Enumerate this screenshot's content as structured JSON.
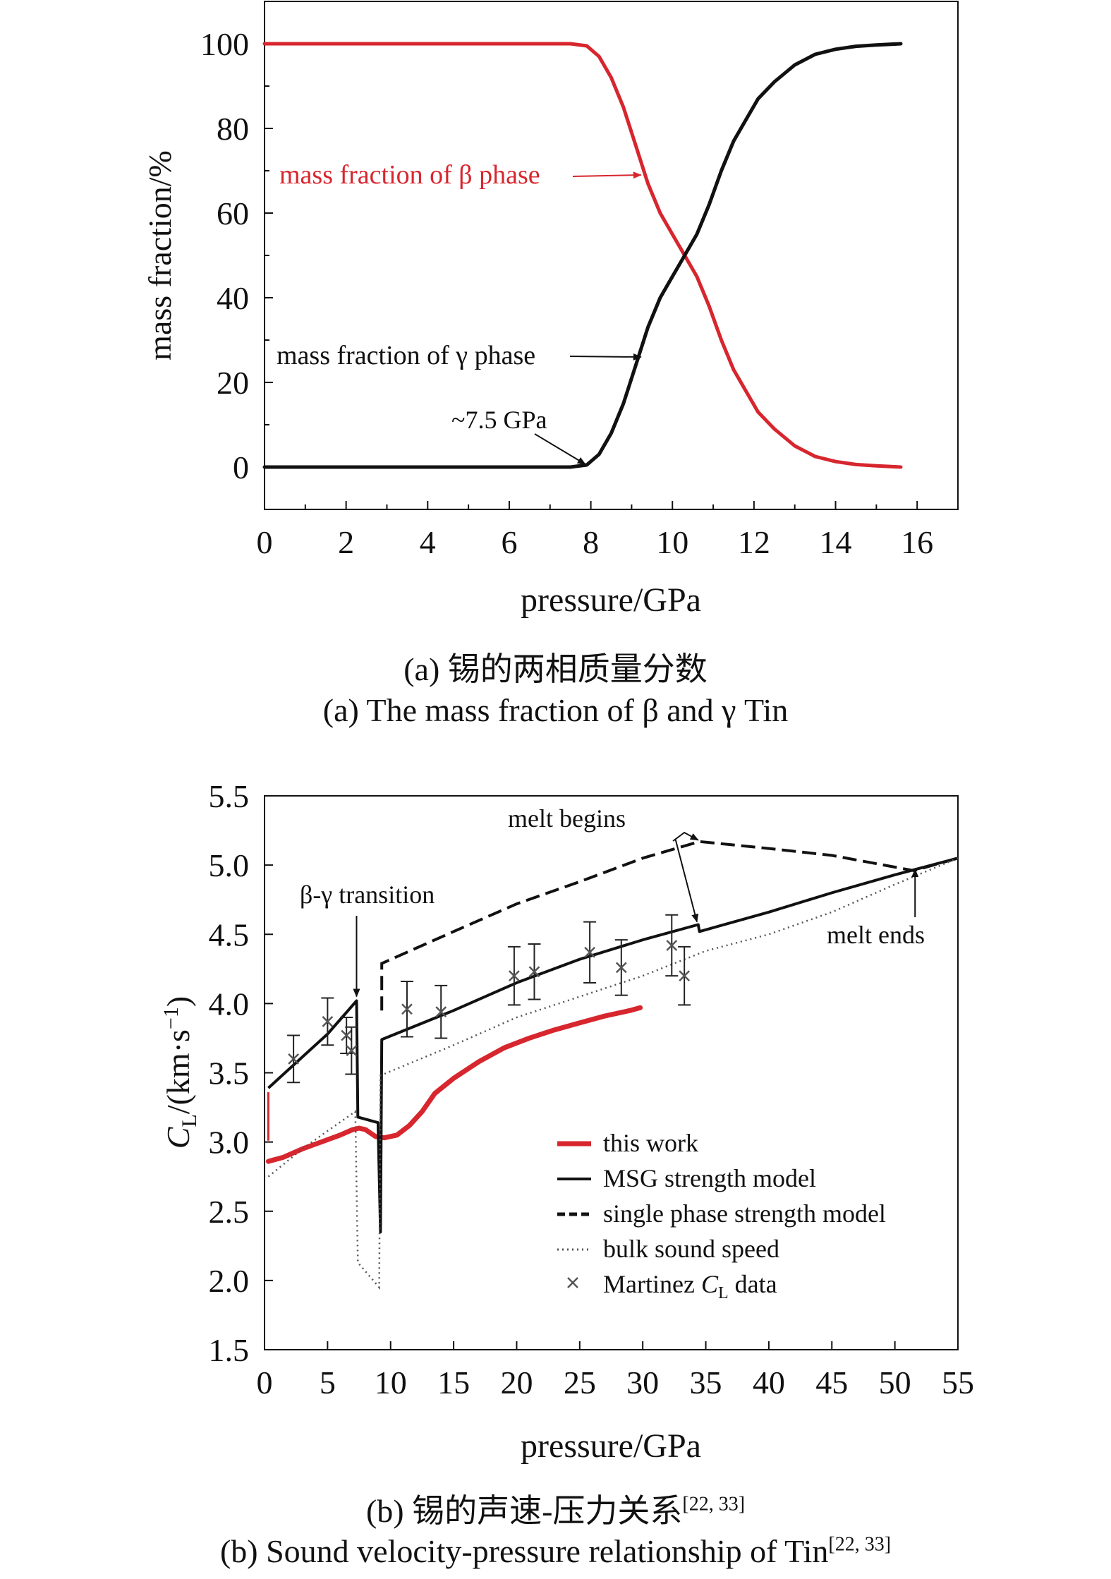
{
  "colors": {
    "red": "#d7262e",
    "black": "#111111",
    "gray": "#555555",
    "marker": "#555555"
  },
  "chart_data": [
    {
      "id": "a",
      "type": "line",
      "xlabel": "pressure/GPa",
      "ylabel": "mass fraction/%",
      "xlim": [
        0,
        17
      ],
      "ylim": [
        -10,
        110
      ],
      "xticks": [
        0,
        2,
        4,
        6,
        8,
        10,
        12,
        14,
        16
      ],
      "yticks": [
        0,
        20,
        40,
        60,
        80,
        100
      ],
      "series": [
        {
          "name": "mass fraction of β phase",
          "color": "red",
          "x": [
            0,
            7.5,
            7.9,
            8.2,
            8.5,
            8.8,
            9.1,
            9.4,
            9.7,
            10.0,
            10.3,
            10.6,
            10.9,
            11.2,
            11.5,
            11.8,
            12.1,
            12.5,
            13.0,
            13.5,
            14.0,
            14.5,
            15.0,
            15.6
          ],
          "y": [
            100,
            100,
            99.5,
            97,
            92,
            85,
            76,
            67,
            60,
            55,
            50,
            45,
            38,
            30,
            23,
            18,
            13,
            9,
            5,
            2.5,
            1.3,
            0.6,
            0.3,
            0
          ]
        },
        {
          "name": "mass fraction of γ phase",
          "color": "black",
          "x": [
            0,
            7.5,
            7.9,
            8.2,
            8.5,
            8.8,
            9.1,
            9.4,
            9.7,
            10.0,
            10.3,
            10.6,
            10.9,
            11.2,
            11.5,
            11.8,
            12.1,
            12.5,
            13.0,
            13.5,
            14.0,
            14.5,
            15.0,
            15.6
          ],
          "y": [
            0,
            0,
            0.5,
            3,
            8,
            15,
            24,
            33,
            40,
            45,
            50,
            55,
            62,
            70,
            77,
            82,
            87,
            91,
            95,
            97.5,
            98.7,
            99.4,
            99.7,
            100
          ]
        }
      ],
      "annotations": [
        {
          "text": "mass fraction of β phase",
          "color": "red",
          "arrow_to": [
            9.3,
            69
          ]
        },
        {
          "text": "mass fraction of γ phase",
          "color": "black",
          "arrow_to": [
            9.3,
            26
          ]
        },
        {
          "text": "~7.5 GPa",
          "color": "black",
          "arrow_to": [
            7.9,
            0
          ]
        }
      ]
    },
    {
      "id": "b",
      "type": "line",
      "xlabel": "pressure/GPa",
      "ylabel": "CL/(km·s⁻¹)",
      "xlim": [
        0,
        55
      ],
      "ylim": [
        1.5,
        5.5
      ],
      "xticks": [
        0,
        5,
        10,
        15,
        20,
        25,
        30,
        35,
        40,
        45,
        50,
        55
      ],
      "yticks": [
        1.5,
        2.0,
        2.5,
        3.0,
        3.5,
        4.0,
        4.5,
        5.0,
        5.5
      ],
      "series": [
        {
          "name": "this work",
          "style": "thick-red",
          "x": [
            0.3,
            1.5,
            3,
            4.5,
            6,
            7,
            7.5,
            8,
            8.8,
            9.5,
            10.5,
            11.5,
            12.5,
            13.5,
            15,
            17,
            19,
            21,
            23,
            25,
            27,
            29,
            29.8
          ],
          "y": [
            2.86,
            2.89,
            2.95,
            3.0,
            3.05,
            3.09,
            3.1,
            3.09,
            3.04,
            3.03,
            3.05,
            3.12,
            3.22,
            3.35,
            3.46,
            3.58,
            3.68,
            3.75,
            3.81,
            3.86,
            3.91,
            3.95,
            3.97
          ]
        },
        {
          "name": "this work (vertical segment)",
          "style": "thin-red",
          "x": [
            0.3,
            0.3
          ],
          "y": [
            3.01,
            3.36
          ]
        },
        {
          "name": "MSG strength model",
          "style": "solid",
          "x": [
            0.3,
            5,
            7.3,
            7.4,
            9.0,
            9.2,
            9.3,
            15,
            20,
            25,
            30,
            34.4,
            34.5,
            40,
            45,
            50,
            55
          ],
          "y": [
            3.39,
            3.78,
            4.02,
            3.18,
            3.14,
            2.35,
            3.74,
            3.95,
            4.15,
            4.32,
            4.46,
            4.57,
            4.52,
            4.66,
            4.8,
            4.93,
            5.05
          ]
        },
        {
          "name": "single phase strength model",
          "style": "dashed",
          "x": [
            9.3,
            9.3,
            15,
            20,
            25,
            30,
            34.5,
            40,
            45,
            51.5,
            55
          ],
          "y": [
            3.95,
            4.29,
            4.52,
            4.72,
            4.88,
            5.05,
            5.17,
            5.12,
            5.07,
            4.96,
            5.05
          ]
        },
        {
          "name": "bulk sound speed",
          "style": "dotted",
          "x": [
            0.3,
            3,
            5,
            7.2,
            7.4,
            9.1,
            9.2,
            15,
            20,
            25,
            30,
            35,
            40,
            45,
            50,
            55
          ],
          "y": [
            2.75,
            2.95,
            3.08,
            3.22,
            2.13,
            1.95,
            3.48,
            3.7,
            3.9,
            4.05,
            4.2,
            4.38,
            4.5,
            4.66,
            4.86,
            5.05
          ]
        }
      ],
      "martinez": [
        {
          "x": 2.3,
          "y": 3.6,
          "err": 0.17
        },
        {
          "x": 5.0,
          "y": 3.87,
          "err": 0.17
        },
        {
          "x": 6.5,
          "y": 3.77,
          "err": 0.13
        },
        {
          "x": 6.9,
          "y": 3.66,
          "err": 0.17
        },
        {
          "x": 11.3,
          "y": 3.96,
          "err": 0.2
        },
        {
          "x": 14.0,
          "y": 3.94,
          "err": 0.19
        },
        {
          "x": 19.8,
          "y": 4.2,
          "err": 0.21
        },
        {
          "x": 21.4,
          "y": 4.23,
          "err": 0.2
        },
        {
          "x": 25.8,
          "y": 4.37,
          "err": 0.22
        },
        {
          "x": 28.3,
          "y": 4.26,
          "err": 0.2
        },
        {
          "x": 32.3,
          "y": 4.42,
          "err": 0.22
        },
        {
          "x": 33.3,
          "y": 4.2,
          "err": 0.21
        }
      ],
      "annotations": [
        {
          "id": "bg",
          "text": "β-γ transition",
          "arrow_to": [
            7.3,
            4.04
          ]
        },
        {
          "id": "mb",
          "text": "melt begins"
        },
        {
          "id": "me",
          "text": "melt ends"
        }
      ],
      "legend": {
        "placement": "bottom-right",
        "items": [
          {
            "label": "this work",
            "style": "thick-red"
          },
          {
            "label": "MSG strength model",
            "style": "solid"
          },
          {
            "label": "single phase strength model",
            "style": "dashed"
          },
          {
            "label": "bulk sound speed",
            "style": "dotted"
          },
          {
            "label": "Martinez CL data",
            "style": "cross"
          }
        ]
      }
    }
  ],
  "captions": {
    "a_cn": "(a) 锡的两相质量分数",
    "a_en": "(a) The mass fraction of β and γ Tin",
    "b_cn": "(b) 锡的声速-压力关系",
    "b_en": "(b) Sound velocity-pressure relationship of Tin",
    "refs": "[22, 33]"
  }
}
